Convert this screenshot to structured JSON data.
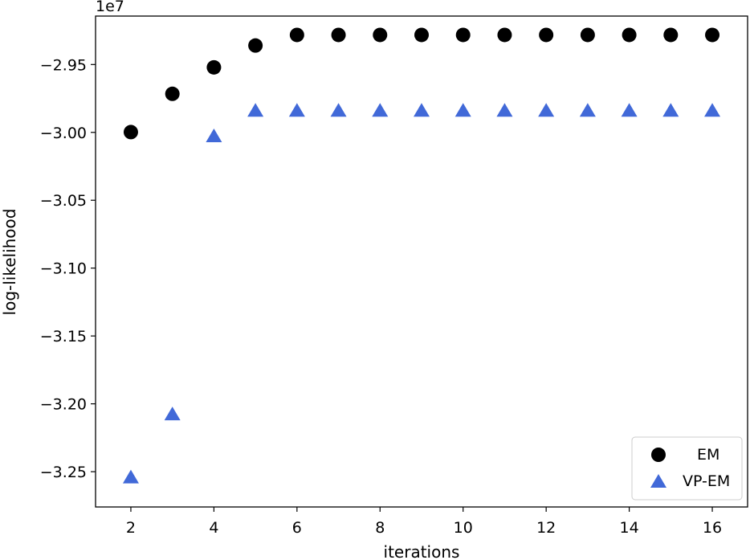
{
  "chart_data": {
    "type": "scatter",
    "title": "",
    "xlabel": "iterations",
    "ylabel": "log-likelihood",
    "offset_label": "1e7",
    "xlim": [
      1.15,
      16.85
    ],
    "ylim": [
      -3.276,
      -2.9143
    ],
    "xticks": [
      2,
      4,
      6,
      8,
      10,
      12,
      14,
      16
    ],
    "xtick_labels": [
      "2",
      "4",
      "6",
      "8",
      "10",
      "12",
      "14",
      "16"
    ],
    "yticks": [
      -2.95,
      -3.0,
      -3.05,
      -3.1,
      -3.15,
      -3.2,
      -3.25
    ],
    "ytick_labels": [
      "−2.95",
      "−3.00",
      "−3.05",
      "−3.10",
      "−3.15",
      "−3.20",
      "−3.25"
    ],
    "grid": false,
    "legend_position": "lower-right",
    "series": [
      {
        "name": "EM",
        "marker": "circle",
        "color": "#000000",
        "x": [
          2,
          3,
          4,
          5,
          6,
          7,
          8,
          9,
          10,
          11,
          12,
          13,
          14,
          15,
          16
        ],
        "y": [
          -2.9998,
          -2.9716,
          -2.9521,
          -2.936,
          -2.9282,
          -2.9282,
          -2.9282,
          -2.9282,
          -2.9282,
          -2.9282,
          -2.9282,
          -2.9282,
          -2.9282,
          -2.9282,
          -2.9282
        ]
      },
      {
        "name": "VP-EM",
        "marker": "triangle",
        "color": "#4169d8",
        "x": [
          2,
          3,
          4,
          5,
          6,
          7,
          8,
          9,
          10,
          11,
          12,
          13,
          14,
          15,
          16
        ],
        "y": [
          -3.2545,
          -3.208,
          -3.0031,
          -2.9843,
          -2.9843,
          -2.9843,
          -2.9843,
          -2.9843,
          -2.9843,
          -2.9843,
          -2.9843,
          -2.9843,
          -2.9843,
          -2.9843,
          -2.9843
        ]
      }
    ]
  }
}
